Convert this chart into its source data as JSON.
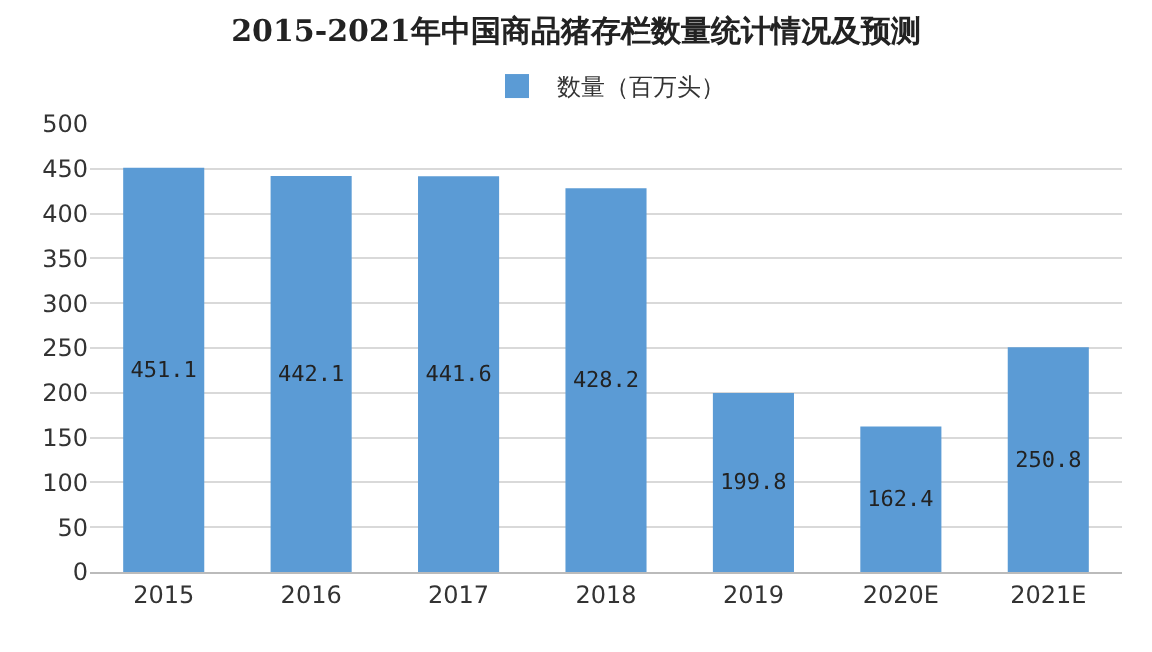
{
  "chart_data": {
    "type": "bar",
    "title": "2015-2021年中国商品猪存栏数量统计情况及预测",
    "categories": [
      "2015",
      "2016",
      "2017",
      "2018",
      "2019",
      "2020E",
      "2021E"
    ],
    "series": [
      {
        "name": "数量（百万头）",
        "color": "#5b9bd5",
        "values": [
          451.1,
          442.1,
          441.6,
          428.2,
          199.8,
          162.4,
          250.8
        ]
      }
    ],
    "ylim": [
      0,
      500
    ],
    "yticks": [
      0,
      50,
      100,
      150,
      200,
      250,
      300,
      350,
      400,
      450,
      500
    ],
    "grid": "y",
    "legend": "top",
    "data_labels": true
  }
}
